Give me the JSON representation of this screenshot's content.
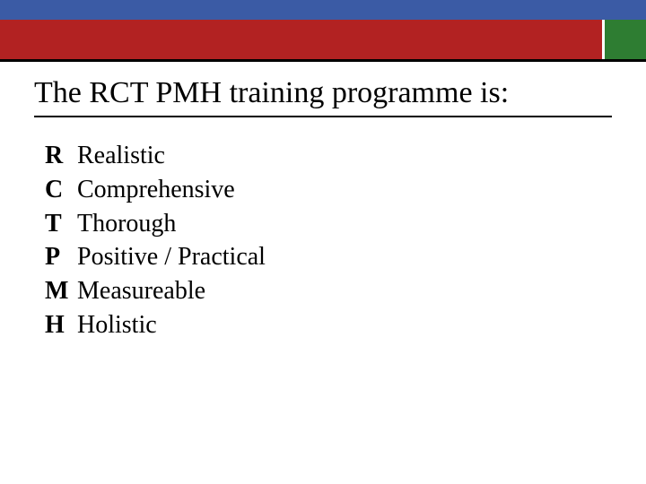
{
  "colors": {
    "banner_blue": "#3b5ba5",
    "banner_red": "#b22222",
    "banner_green": "#2e7d32",
    "text": "#000000",
    "background": "#ffffff"
  },
  "typography": {
    "title_fontsize": 34,
    "body_fontsize": 28,
    "font_family": "Times New Roman"
  },
  "title": "The RCT PMH training programme is:",
  "items": [
    {
      "letter": "R",
      "term": "Realistic"
    },
    {
      "letter": "C",
      "term": "Comprehensive"
    },
    {
      "letter": "T",
      "term": "Thorough"
    },
    {
      "letter": "P",
      "term": "Positive / Practical"
    },
    {
      "letter": "M",
      "term": "Measureable"
    },
    {
      "letter": "H",
      "term": "Holistic"
    }
  ]
}
